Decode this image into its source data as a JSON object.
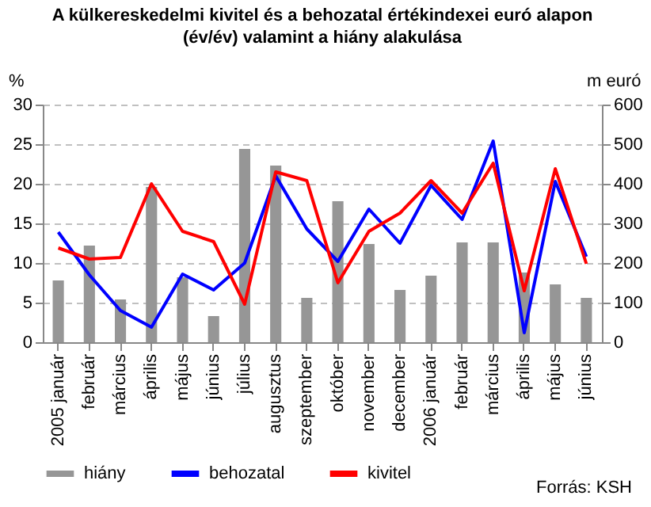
{
  "chart_data": {
    "type": "bar",
    "title": "A külkereskedelmi kivitel és a behozatal értékindexei euró alapon\n(év/év) valamint a hiány alakulása",
    "ylabel": "%",
    "y2label": "m euró",
    "categories": [
      "2005 január",
      "február",
      "március",
      "április",
      "május",
      "június",
      "július",
      "augusztus",
      "szeptember",
      "október",
      "november",
      "december",
      "2006 január",
      "február",
      "március",
      "április",
      "május",
      "június"
    ],
    "series": [
      {
        "name": "hiány",
        "axis": "y2",
        "color": "#969696",
        "values": [
          156,
          244,
          108,
          392,
          164,
          66,
          488,
          446,
          112,
          356,
          248,
          132,
          168,
          252,
          252,
          176,
          146,
          112
        ]
      },
      {
        "name": "behozatal",
        "type": "line",
        "color": "#0000ff",
        "values": [
          13.9,
          8.5,
          4,
          1.9,
          8.6,
          6.6,
          10,
          21,
          14.3,
          10.2,
          16.8,
          12.5,
          19.8,
          15.5,
          25.4,
          1.2,
          20.3,
          10.8
        ]
      },
      {
        "name": "kivitel",
        "type": "line",
        "color": "#ff0000",
        "values": [
          11.9,
          10.5,
          10.7,
          20,
          14,
          12.7,
          4.8,
          21.5,
          20.4,
          7.5,
          14,
          16.3,
          20.4,
          16.3,
          22.6,
          6.5,
          21.9,
          9.9
        ]
      }
    ],
    "ylim": [
      0,
      30
    ],
    "yticks": [
      0,
      5,
      10,
      15,
      20,
      25,
      30
    ],
    "y2lim": [
      0,
      600
    ],
    "y2ticks": [
      0,
      100,
      200,
      300,
      400,
      500,
      600
    ],
    "grid": "y",
    "legend": "bottom",
    "annotations": [
      "Forrás: KSH"
    ]
  }
}
